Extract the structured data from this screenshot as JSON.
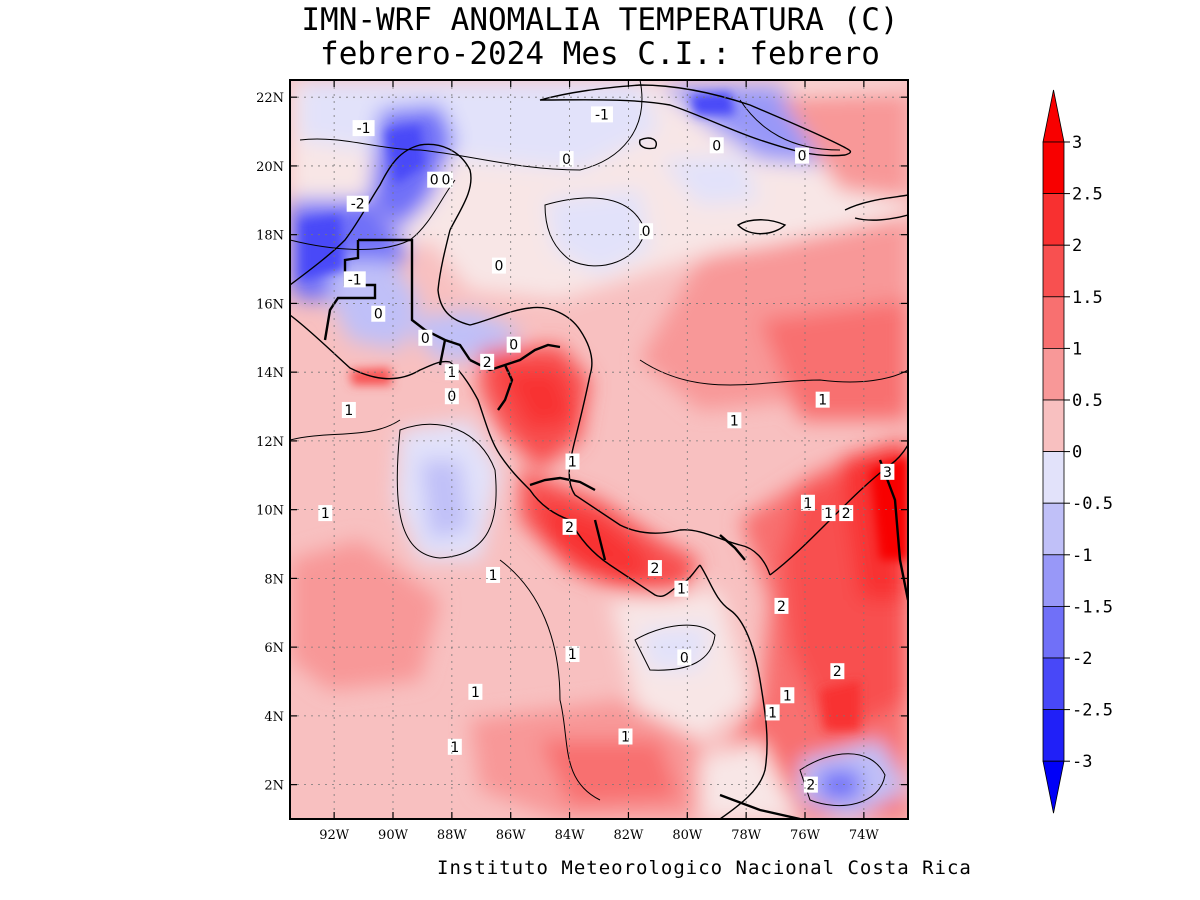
{
  "title": {
    "line1": "IMN-WRF  ANOMALIA TEMPERATURA (C)",
    "line2": "febrero-2024 Mes C.I.: febrero"
  },
  "credit": "Instituto Meteorologico Nacional Costa Rica",
  "chart_data": {
    "type": "heatmap",
    "variable": "temperature anomaly",
    "units": "C",
    "lon_range": [
      -93.5,
      -72.5
    ],
    "lat_range": [
      1,
      22.5
    ],
    "x_ticks": [
      "92W",
      "90W",
      "88W",
      "86W",
      "84W",
      "82W",
      "80W",
      "78W",
      "76W",
      "74W"
    ],
    "y_ticks": [
      "2N",
      "4N",
      "6N",
      "8N",
      "10N",
      "12N",
      "14N",
      "16N",
      "18N",
      "20N",
      "22N"
    ],
    "colorbar": {
      "levels": [
        "3",
        "2.5",
        "2",
        "1.5",
        "1",
        "0.5",
        "0",
        "-0.5",
        "-1",
        "-1.5",
        "-2",
        "-2.5",
        "-3"
      ],
      "colors": [
        "#f80000",
        "#f83030",
        "#f85050",
        "#f87070",
        "#f89898",
        "#f8c0c0",
        "#f8e6e6",
        "#e2e2fa",
        "#c0c0f8",
        "#9898f8",
        "#7070f8",
        "#4848f8",
        "#2020f8"
      ],
      "over_color": "#f80000",
      "under_color": "#0000f8"
    },
    "contour_labels": [
      {
        "lon": -91.0,
        "lat": 21.1,
        "text": "-1"
      },
      {
        "lon": -82.9,
        "lat": 21.5,
        "text": "-1"
      },
      {
        "lon": -84.1,
        "lat": 20.2,
        "text": "0"
      },
      {
        "lon": -79.0,
        "lat": 20.6,
        "text": "0"
      },
      {
        "lon": -76.1,
        "lat": 20.3,
        "text": "0"
      },
      {
        "lon": -88.6,
        "lat": 19.6,
        "text": "0"
      },
      {
        "lon": -88.2,
        "lat": 19.6,
        "text": "0"
      },
      {
        "lon": -91.2,
        "lat": 18.9,
        "text": "-2"
      },
      {
        "lon": -81.4,
        "lat": 18.1,
        "text": "0"
      },
      {
        "lon": -86.4,
        "lat": 17.1,
        "text": "0"
      },
      {
        "lon": -91.3,
        "lat": 16.7,
        "text": "-1"
      },
      {
        "lon": -90.5,
        "lat": 15.7,
        "text": "0"
      },
      {
        "lon": -88.9,
        "lat": 15.0,
        "text": "0"
      },
      {
        "lon": -85.9,
        "lat": 14.8,
        "text": "0"
      },
      {
        "lon": -86.8,
        "lat": 14.3,
        "text": "2"
      },
      {
        "lon": -88.0,
        "lat": 14.0,
        "text": "1"
      },
      {
        "lon": -88.0,
        "lat": 13.3,
        "text": "0"
      },
      {
        "lon": -91.5,
        "lat": 12.9,
        "text": "1"
      },
      {
        "lon": -78.4,
        "lat": 12.6,
        "text": "1"
      },
      {
        "lon": -75.4,
        "lat": 13.2,
        "text": "1"
      },
      {
        "lon": -83.9,
        "lat": 11.4,
        "text": "1"
      },
      {
        "lon": -73.2,
        "lat": 11.1,
        "text": "3"
      },
      {
        "lon": -75.9,
        "lat": 10.2,
        "text": "1"
      },
      {
        "lon": -75.2,
        "lat": 9.9,
        "text": "1"
      },
      {
        "lon": -74.6,
        "lat": 9.9,
        "text": "2"
      },
      {
        "lon": -92.3,
        "lat": 9.9,
        "text": "1"
      },
      {
        "lon": -84.0,
        "lat": 9.5,
        "text": "2"
      },
      {
        "lon": -81.1,
        "lat": 8.3,
        "text": "2"
      },
      {
        "lon": -86.6,
        "lat": 8.1,
        "text": "1"
      },
      {
        "lon": -80.2,
        "lat": 7.7,
        "text": "1"
      },
      {
        "lon": -76.8,
        "lat": 7.2,
        "text": "2"
      },
      {
        "lon": -83.9,
        "lat": 5.8,
        "text": "1"
      },
      {
        "lon": -80.1,
        "lat": 5.7,
        "text": "0"
      },
      {
        "lon": -74.9,
        "lat": 5.3,
        "text": "2"
      },
      {
        "lon": -87.2,
        "lat": 4.7,
        "text": "1"
      },
      {
        "lon": -76.6,
        "lat": 4.6,
        "text": "1"
      },
      {
        "lon": -77.1,
        "lat": 4.1,
        "text": "1"
      },
      {
        "lon": -82.1,
        "lat": 3.4,
        "text": "1"
      },
      {
        "lon": -87.9,
        "lat": 3.1,
        "text": "1"
      },
      {
        "lon": -75.8,
        "lat": 2.0,
        "text": "2"
      }
    ]
  }
}
